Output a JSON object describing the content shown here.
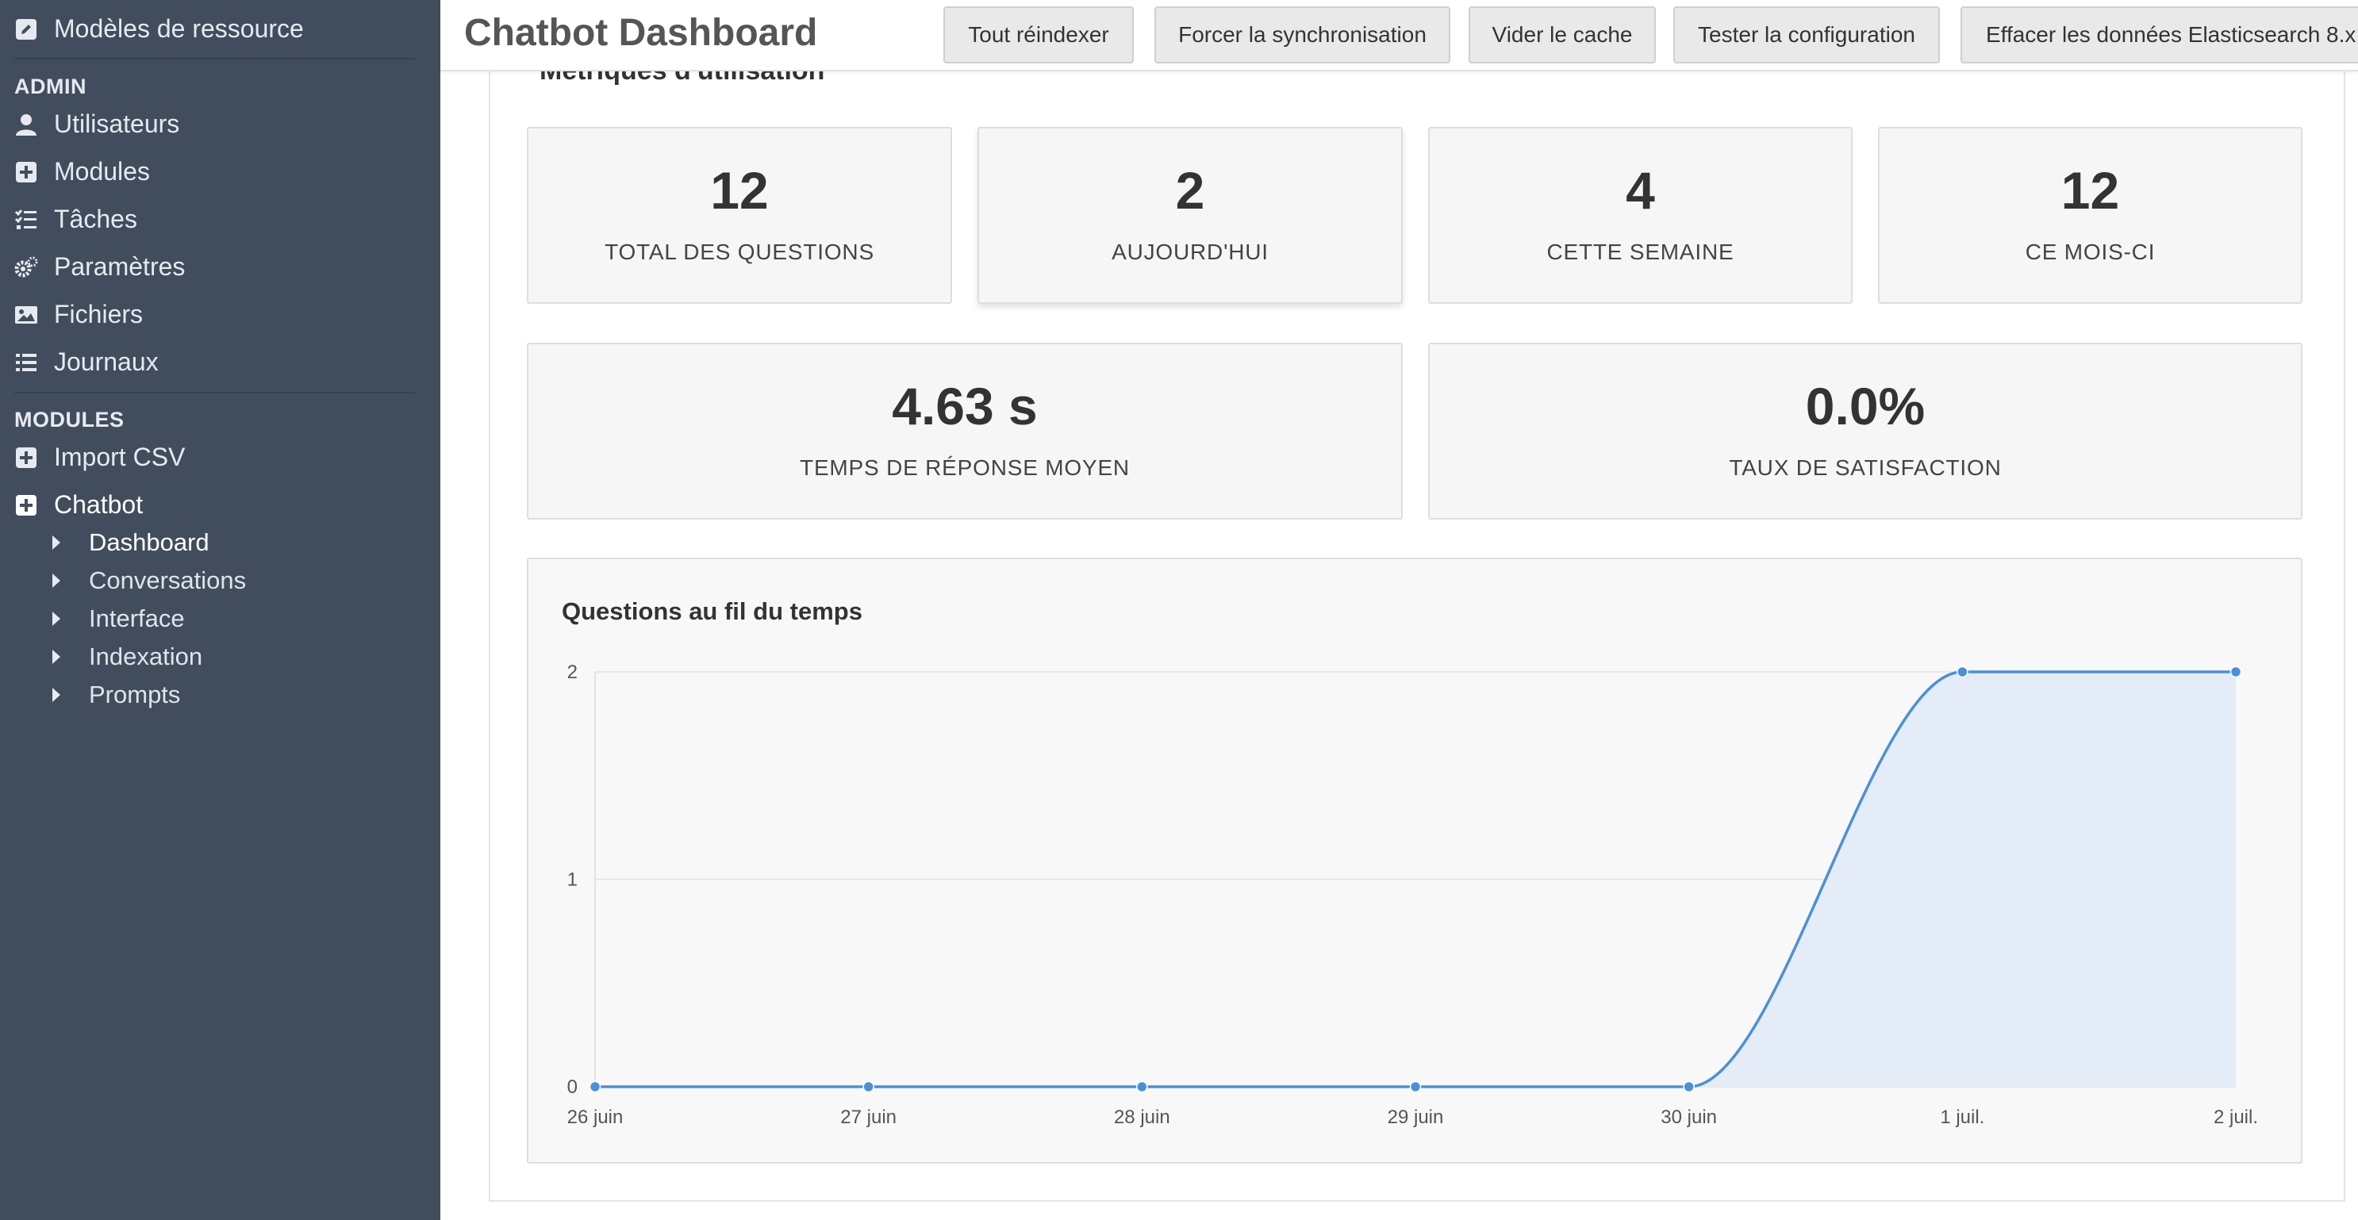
{
  "sidebar": {
    "top_item": "Modèles de ressource",
    "admin_heading": "ADMIN",
    "admin_items": [
      "Utilisateurs",
      "Modules",
      "Tâches",
      "Paramètres",
      "Fichiers",
      "Journaux"
    ],
    "modules_heading": "MODULES",
    "module_items": [
      "Import CSV",
      "Chatbot"
    ],
    "chatbot_subitems": [
      "Dashboard",
      "Conversations",
      "Interface",
      "Indexation",
      "Prompts"
    ],
    "active_subitem": "Dashboard"
  },
  "header": {
    "title": "Chatbot Dashboard",
    "buttons": [
      "Tout réindexer",
      "Forcer la synchronisation",
      "Vider le cache",
      "Tester la configuration",
      "Effacer les données Elasticsearch 8.x"
    ]
  },
  "main": {
    "section_title": "Métriques d'utilisation",
    "stats": [
      {
        "value": "12",
        "label": "TOTAL DES QUESTIONS"
      },
      {
        "value": "2",
        "label": "AUJOURD'HUI"
      },
      {
        "value": "4",
        "label": "CETTE SEMAINE"
      },
      {
        "value": "12",
        "label": "CE MOIS-CI"
      }
    ],
    "stats2": [
      {
        "value": "4.63 s",
        "label": "TEMPS DE RÉPONSE MOYEN"
      },
      {
        "value": "0.0%",
        "label": "TAUX DE SATISFACTION"
      }
    ]
  },
  "chart_data": {
    "type": "area",
    "title": "Questions au fil du temps",
    "categories": [
      "26 juin",
      "27 juin",
      "28 juin",
      "29 juin",
      "30 juin",
      "1 juil.",
      "2 juil."
    ],
    "values": [
      0,
      0,
      0,
      0,
      0,
      2,
      2
    ],
    "ylim": [
      0,
      2
    ],
    "yticks": [
      "0",
      "1",
      "2"
    ],
    "grid": true,
    "colors": {
      "line": "#4a90d9",
      "fill": "#e3ecf7"
    }
  }
}
